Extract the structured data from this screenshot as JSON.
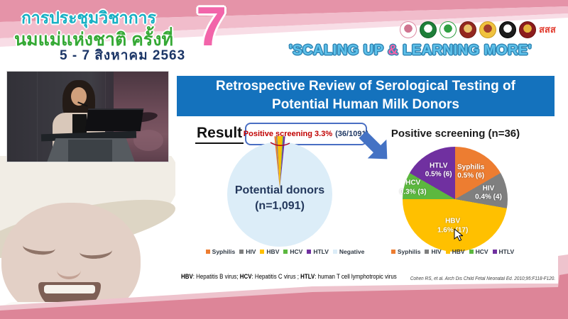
{
  "header": {
    "conference_title_line1": "การประชุมวิชาการ",
    "conference_title_line2": "นมแม่แห่งชาติ ครั้งที่",
    "edition_number": "7",
    "dates": "5 - 7 สิงหาคม 2563",
    "slogan_segments": [
      {
        "text": "'SCALING UP "
      },
      {
        "text": "&",
        "accent": true
      },
      {
        "text": " LEARNING MORE'"
      }
    ],
    "accent_color": "#f263a8",
    "logos": [
      {
        "id": "breastfeeding-foundation-logo",
        "bg": "#ffffff",
        "border": "#dd8ba4",
        "core": "#cf7490"
      },
      {
        "id": "ministry-of-public-health-logo",
        "bg": "#1e7f39",
        "border": "#14602a",
        "core": "#ffffff"
      },
      {
        "id": "department-of-health-logo",
        "bg": "#ffffff",
        "border": "#2f9e41",
        "core": "#2f9e41"
      },
      {
        "id": "red-temple-emblem-logo",
        "bg": "#93271f",
        "border": "#6f1c16",
        "core": "#e9c26b"
      },
      {
        "id": "gold-royal-emblem-logo",
        "bg": "#f0c23e",
        "border": "#c89a24",
        "core": "#a23d2e"
      },
      {
        "id": "black-university-seal-logo",
        "bg": "#1c1c1c",
        "border": "#000000",
        "core": "#ffffff"
      },
      {
        "id": "dark-red-crest-logo",
        "bg": "#8c1d1d",
        "border": "#6a1313",
        "core": "#e5b43c"
      },
      {
        "id": "thai-health-promotion-logo",
        "text": "สสส",
        "color": "#e23b2e"
      }
    ]
  },
  "slide": {
    "title_line1": "Retrospective Review of Serological Testing of",
    "title_line2": "Potential Human Milk Donors",
    "banner_color": "#1472bd",
    "result_label": "Result",
    "callout_highlight": "Positive screening 3.3%",
    "callout_detail": "(36/1091)",
    "footnote_segments": [
      {
        "text": "HBV",
        "bold": true
      },
      {
        "text": ": Hepatitis B virus; "
      },
      {
        "text": "HCV",
        "bold": true
      },
      {
        "text": ": Hepatitis C virus ; "
      },
      {
        "text": "HTLV",
        "bold": true
      },
      {
        "text": ": human T cell lymphotropic virus"
      }
    ],
    "citation": "Cohen RS, et al. Arch Dis Child Fetal Neonatal Ed. 2010;95:F118-F120."
  },
  "chart_data": [
    {
      "type": "pie",
      "name": "potential-donors-pie",
      "center_label_line1": "Potential donors",
      "center_label_line2": "(n=1,091)",
      "total": 1091,
      "categories": [
        "Syphilis",
        "HIV",
        "HBV",
        "HCV",
        "HTLV",
        "Negative"
      ],
      "values": [
        6,
        4,
        17,
        3,
        6,
        1055
      ],
      "colors": [
        "#ED7D31",
        "#7F7F7F",
        "#FFC000",
        "#5CB83F",
        "#7030A0",
        "#DCEDF8"
      ],
      "legend_position": "bottom",
      "exploded_group": [
        "Syphilis",
        "HIV",
        "HBV",
        "HCV",
        "HTLV"
      ]
    },
    {
      "type": "pie",
      "name": "positive-screening-pie",
      "title": "Positive screening (n=36)",
      "total": 36,
      "categories": [
        "Syphilis",
        "HIV",
        "HBV",
        "HCV",
        "HTLV"
      ],
      "values": [
        6,
        4,
        17,
        3,
        6
      ],
      "percent_labels": [
        "0.5% (6)",
        "0.4% (4)",
        "1.6% (17)",
        "0.3% (3)",
        "0.5% (6)"
      ],
      "colors": [
        "#ED7D31",
        "#7F7F7F",
        "#FFC000",
        "#5CB83F",
        "#7030A0"
      ],
      "legend_position": "bottom"
    }
  ]
}
